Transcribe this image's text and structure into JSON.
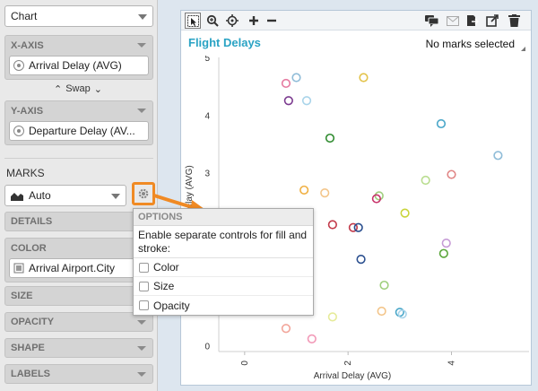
{
  "chart_type": {
    "selected": "Chart"
  },
  "x_axis": {
    "header": "X-AXIS",
    "field": "Arrival Delay (AVG)"
  },
  "swap": {
    "label": "Swap"
  },
  "y_axis": {
    "header": "Y-AXIS",
    "field": "Departure Delay (AV..."
  },
  "marks": {
    "header": "MARKS",
    "type": "Auto",
    "details_label": "DETAILS",
    "color_label": "COLOR",
    "color_field": "Arrival Airport.City",
    "size_label": "SIZE",
    "opacity_label": "OPACITY",
    "shape_label": "SHAPE",
    "labels_label": "LABELS"
  },
  "popup": {
    "title": "OPTIONS",
    "description": "Enable separate controls for fill and stroke:",
    "options": [
      {
        "label": "Color",
        "checked": false
      },
      {
        "label": "Size",
        "checked": false
      },
      {
        "label": "Opacity",
        "checked": false
      }
    ]
  },
  "chart": {
    "title": "Flight Delays",
    "status": "No marks selected",
    "accent_color": "#2aa3c4",
    "highlight_color": "#f08a24"
  },
  "chart_data": {
    "type": "scatter",
    "xlabel": "Arrival Delay (AVG)",
    "ylabel": "Delay (AVG)",
    "x_ticks": [
      "0",
      "2",
      "4"
    ],
    "y_ticks": [
      "0",
      "1",
      "2",
      "3",
      "4",
      "5"
    ],
    "xlim": [
      -0.5,
      5.5
    ],
    "ylim": [
      -0.1,
      5.0
    ],
    "points": [
      {
        "x": 0.8,
        "y": 4.55,
        "color": "#e57aa0"
      },
      {
        "x": 1.0,
        "y": 4.65,
        "color": "#8fbcd8"
      },
      {
        "x": 0.85,
        "y": 4.25,
        "color": "#7b3a8f"
      },
      {
        "x": 1.2,
        "y": 4.25,
        "color": "#a9d4ea"
      },
      {
        "x": 2.3,
        "y": 4.65,
        "color": "#e3c34a"
      },
      {
        "x": 1.65,
        "y": 3.6,
        "color": "#2f8b2f"
      },
      {
        "x": 3.8,
        "y": 3.85,
        "color": "#4aa7c9"
      },
      {
        "x": 4.9,
        "y": 3.3,
        "color": "#8fbcd8"
      },
      {
        "x": 4.0,
        "y": 2.97,
        "color": "#e08585"
      },
      {
        "x": 3.5,
        "y": 2.87,
        "color": "#b9dd8f"
      },
      {
        "x": 1.15,
        "y": 2.7,
        "color": "#f0b043"
      },
      {
        "x": 1.55,
        "y": 2.65,
        "color": "#f3c58a"
      },
      {
        "x": 2.6,
        "y": 2.6,
        "color": "#9fcf7d"
      },
      {
        "x": 2.55,
        "y": 2.55,
        "color": "#c8326b"
      },
      {
        "x": 3.1,
        "y": 2.3,
        "color": "#c9d43a"
      },
      {
        "x": 1.7,
        "y": 2.1,
        "color": "#c23a4a"
      },
      {
        "x": 2.1,
        "y": 2.05,
        "color": "#c23a4a"
      },
      {
        "x": 2.2,
        "y": 2.05,
        "color": "#2a4f8f"
      },
      {
        "x": 3.9,
        "y": 1.78,
        "color": "#c69bd6"
      },
      {
        "x": 3.85,
        "y": 1.6,
        "color": "#5aa63a"
      },
      {
        "x": 2.25,
        "y": 1.5,
        "color": "#2a4f8f"
      },
      {
        "x": 2.7,
        "y": 1.05,
        "color": "#9fcf7d"
      },
      {
        "x": 2.65,
        "y": 0.6,
        "color": "#f3c58a"
      },
      {
        "x": 3.0,
        "y": 0.58,
        "color": "#4aa7c9"
      },
      {
        "x": 3.05,
        "y": 0.55,
        "color": "#a9d4ea"
      },
      {
        "x": 1.7,
        "y": 0.5,
        "color": "#e6eb9a"
      },
      {
        "x": 0.8,
        "y": 0.3,
        "color": "#f2a59a"
      },
      {
        "x": 1.3,
        "y": 0.12,
        "color": "#f29ab8"
      }
    ]
  }
}
